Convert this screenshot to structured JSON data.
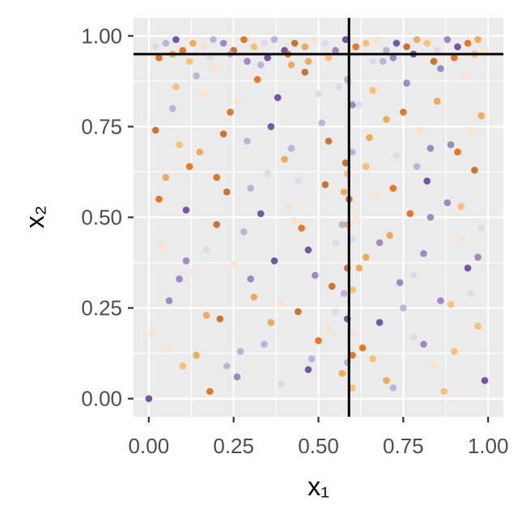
{
  "chart_data": {
    "type": "scatter",
    "xlabel": "x₁",
    "ylabel": "x₂",
    "xlim": [
      -0.045,
      1.045
    ],
    "ylim": [
      -0.05,
      1.05
    ],
    "x_ticks": [
      0,
      0.25,
      0.5,
      0.75,
      1
    ],
    "y_ticks": [
      0,
      0.25,
      0.5,
      0.75,
      1
    ],
    "x_tick_labels": [
      "0.00",
      "0.25",
      "0.50",
      "0.75",
      "1.00"
    ],
    "y_tick_labels": [
      "0.00",
      "0.25",
      "0.50",
      "0.75",
      "1.00"
    ],
    "grid": true,
    "reference_lines": {
      "vertical_x": 0.59,
      "horizontal_y": 0.95
    },
    "palette": [
      "#5e3c99",
      "#8e79b8",
      "#b2abd2",
      "#dcd7ea",
      "#fde0c5",
      "#fdb863",
      "#f0a040",
      "#e66101",
      "#c26010"
    ],
    "series": [
      {
        "name": "",
        "points": [
          [
            0,
            0
          ],
          [
            0.02,
            0.97
          ],
          [
            0.05,
            0.98
          ],
          [
            0.08,
            0.99
          ],
          [
            0.1,
            0.96
          ],
          [
            0.13,
            0.98
          ],
          [
            0.16,
            0.97
          ],
          [
            0.19,
            0.99
          ],
          [
            0.22,
            0.98
          ],
          [
            0.25,
            0.96
          ],
          [
            0.28,
            0.99
          ],
          [
            0.31,
            0.97
          ],
          [
            0.34,
            0.98
          ],
          [
            0.37,
            0.99
          ],
          [
            0.4,
            0.96
          ],
          [
            0.43,
            0.98
          ],
          [
            0.46,
            0.97
          ],
          [
            0.49,
            0.99
          ],
          [
            0.52,
            0.98
          ],
          [
            0.55,
            0.96
          ],
          [
            0.58,
            0.99
          ],
          [
            0.61,
            0.97
          ],
          [
            0.64,
            0.98
          ],
          [
            0.67,
            0.99
          ],
          [
            0.7,
            0.96
          ],
          [
            0.73,
            0.98
          ],
          [
            0.76,
            0.97
          ],
          [
            0.79,
            0.99
          ],
          [
            0.82,
            0.98
          ],
          [
            0.85,
            0.96
          ],
          [
            0.88,
            0.99
          ],
          [
            0.91,
            0.97
          ],
          [
            0.94,
            0.98
          ],
          [
            0.97,
            0.99
          ],
          [
            0.99,
            0.96
          ],
          [
            0.03,
            0.94
          ],
          [
            0.07,
            0.95
          ],
          [
            0.12,
            0.93
          ],
          [
            0.18,
            0.94
          ],
          [
            0.24,
            0.95
          ],
          [
            0.29,
            0.93
          ],
          [
            0.35,
            0.94
          ],
          [
            0.41,
            0.95
          ],
          [
            0.47,
            0.93
          ],
          [
            0.53,
            0.94
          ],
          [
            0.6,
            0.95
          ],
          [
            0.66,
            0.93
          ],
          [
            0.72,
            0.94
          ],
          [
            0.78,
            0.95
          ],
          [
            0.84,
            0.93
          ],
          [
            0.9,
            0.94
          ],
          [
            0.96,
            0.95
          ],
          [
            0.02,
            0.74
          ],
          [
            0.05,
            0.61
          ],
          [
            0.08,
            0.86
          ],
          [
            0.09,
            0.33
          ],
          [
            0.11,
            0.52
          ],
          [
            0.14,
            0.12
          ],
          [
            0.15,
            0.68
          ],
          [
            0.17,
            0.41
          ],
          [
            0.19,
            0.91
          ],
          [
            0.21,
            0.22
          ],
          [
            0.23,
            0.57
          ],
          [
            0.24,
            0.79
          ],
          [
            0.26,
            0.06
          ],
          [
            0.28,
            0.46
          ],
          [
            0.29,
            0.71
          ],
          [
            0.31,
            0.28
          ],
          [
            0.32,
            0.88
          ],
          [
            0.34,
            0.15
          ],
          [
            0.35,
            0.62
          ],
          [
            0.37,
            0.38
          ],
          [
            0.38,
            0.83
          ],
          [
            0.39,
            0.04
          ],
          [
            0.41,
            0.53
          ],
          [
            0.42,
            0.69
          ],
          [
            0.44,
            0.24
          ],
          [
            0.45,
            0.47
          ],
          [
            0.46,
            0.9
          ],
          [
            0.48,
            0.11
          ],
          [
            0.49,
            0.34
          ],
          [
            0.51,
            0.76
          ],
          [
            0.52,
            0.59
          ],
          [
            0.53,
            0.19
          ],
          [
            0.55,
            0.43
          ],
          [
            0.56,
            0.86
          ],
          [
            0.57,
            0.07
          ],
          [
            0.58,
            0.65
          ],
          [
            0.6,
            0.3
          ],
          [
            0.61,
            0.5
          ],
          [
            0.62,
            0.81
          ],
          [
            0.63,
            0.14
          ],
          [
            0.64,
            0.39
          ],
          [
            0.65,
            0.72
          ],
          [
            0.67,
            0.56
          ],
          [
            0.68,
            0.21
          ],
          [
            0.69,
            0.93
          ],
          [
            0.71,
            0.45
          ],
          [
            0.72,
            0.03
          ],
          [
            0.73,
            0.67
          ],
          [
            0.74,
            0.32
          ],
          [
            0.76,
            0.87
          ],
          [
            0.77,
            0.51
          ],
          [
            0.78,
            0.17
          ],
          [
            0.8,
            0.74
          ],
          [
            0.81,
            0.4
          ],
          [
            0.82,
            0.6
          ],
          [
            0.84,
            0.09
          ],
          [
            0.85,
            0.82
          ],
          [
            0.86,
            0.27
          ],
          [
            0.88,
            0.54
          ],
          [
            0.89,
            0.7
          ],
          [
            0.9,
            0.13
          ],
          [
            0.92,
            0.44
          ],
          [
            0.93,
            0.89
          ],
          [
            0.94,
            0.36
          ],
          [
            0.96,
            0.63
          ],
          [
            0.97,
            0.2
          ],
          [
            0.98,
            0.78
          ],
          [
            0.99,
            0.05
          ],
          [
            0.01,
            0.18
          ],
          [
            0.04,
            0.42
          ],
          [
            0.06,
            0.27
          ],
          [
            0.07,
            0.8
          ],
          [
            0.1,
            0.09
          ],
          [
            0.12,
            0.64
          ],
          [
            0.13,
            0.35
          ],
          [
            0.16,
            0.84
          ],
          [
            0.18,
            0.02
          ],
          [
            0.2,
            0.48
          ],
          [
            0.22,
            0.73
          ],
          [
            0.25,
            0.37
          ],
          [
            0.27,
            0.13
          ],
          [
            0.3,
            0.58
          ],
          [
            0.33,
            0.92
          ],
          [
            0.36,
            0.21
          ],
          [
            0.4,
            0.66
          ],
          [
            0.43,
            0.49
          ],
          [
            0.47,
            0.08
          ],
          [
            0.5,
            0.84
          ],
          [
            0.54,
            0.31
          ],
          [
            0.59,
            0.55
          ],
          [
            0.66,
            0.11
          ],
          [
            0.7,
            0.77
          ],
          [
            0.75,
            0.25
          ],
          [
            0.79,
            0.64
          ],
          [
            0.83,
            0.5
          ],
          [
            0.87,
            0.02
          ],
          [
            0.91,
            0.68
          ],
          [
            0.95,
            0.29
          ],
          [
            0.98,
            0.47
          ],
          [
            0.03,
            0.55
          ],
          [
            0.06,
            0.14
          ],
          [
            0.09,
            0.7
          ],
          [
            0.11,
            0.38
          ],
          [
            0.14,
            0.89
          ],
          [
            0.17,
            0.23
          ],
          [
            0.2,
            0.61
          ],
          [
            0.23,
            0.09
          ],
          [
            0.26,
            0.82
          ],
          [
            0.3,
            0.33
          ],
          [
            0.33,
            0.51
          ],
          [
            0.36,
            0.75
          ],
          [
            0.39,
            0.26
          ],
          [
            0.42,
            0.92
          ],
          [
            0.44,
            0.6
          ],
          [
            0.47,
            0.41
          ],
          [
            0.5,
            0.16
          ],
          [
            0.53,
            0.71
          ],
          [
            0.55,
            0.24
          ],
          [
            0.57,
            0.48
          ],
          [
            0.59,
            0.87
          ],
          [
            0.6,
            0.12
          ],
          [
            0.62,
            0.36
          ],
          [
            0.64,
            0.64
          ],
          [
            0.66,
            0.85
          ],
          [
            0.68,
            0.43
          ],
          [
            0.7,
            0.05
          ],
          [
            0.72,
            0.58
          ],
          [
            0.75,
            0.79
          ],
          [
            0.78,
            0.34
          ],
          [
            0.81,
            0.15
          ],
          [
            0.83,
            0.69
          ],
          [
            0.86,
            0.91
          ],
          [
            0.89,
            0.26
          ],
          [
            0.92,
            0.53
          ],
          [
            0.95,
            0.74
          ],
          [
            0.97,
            0.39
          ],
          [
            0.585,
            0.1
          ],
          [
            0.585,
            0.22
          ],
          [
            0.585,
            0.36
          ],
          [
            0.585,
            0.48
          ],
          [
            0.585,
            0.62
          ],
          [
            0.585,
            0.75
          ],
          [
            0.585,
            0.88
          ],
          [
            0.6,
            0.03
          ],
          [
            0.6,
            0.18
          ],
          [
            0.6,
            0.44
          ],
          [
            0.6,
            0.68
          ],
          [
            0.6,
            0.81
          ],
          [
            0.575,
            0.57
          ],
          [
            0.575,
            0.29
          ]
        ]
      }
    ]
  }
}
